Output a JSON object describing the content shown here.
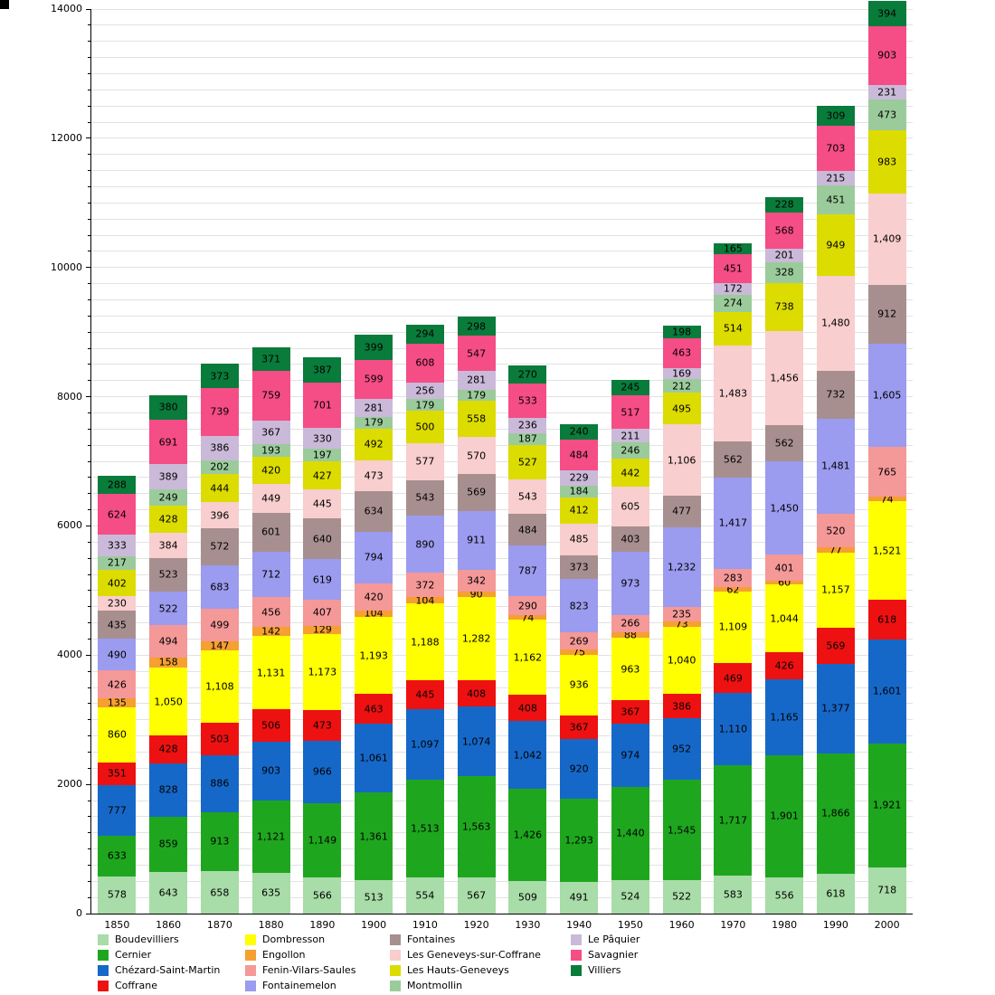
{
  "chart_data": {
    "type": "bar",
    "stacked": true,
    "title": "",
    "xlabel": "",
    "ylabel": "",
    "categories": [
      "1850",
      "1860",
      "1870",
      "1880",
      "1890",
      "1900",
      "1910",
      "1920",
      "1930",
      "1940",
      "1950",
      "1960",
      "1970",
      "1980",
      "1990",
      "2000"
    ],
    "ylim": [
      0,
      14000
    ],
    "y_major_step": 2000,
    "y_minor_step": 250,
    "grid": true,
    "legend_position": "bottom",
    "legend_columns": 4,
    "legend_rows_per_column": 4,
    "series": [
      {
        "name": "Boudevilliers",
        "color": "#a8dca8",
        "values": [
          578,
          643,
          658,
          635,
          566,
          513,
          554,
          567,
          509,
          491,
          524,
          522,
          583,
          556,
          618,
          718
        ]
      },
      {
        "name": "Cernier",
        "color": "#1ea71e",
        "values": [
          633,
          859,
          913,
          1121,
          1149,
          1361,
          1513,
          1563,
          1426,
          1293,
          1440,
          1545,
          1717,
          1901,
          1866,
          1921
        ]
      },
      {
        "name": "Chézard-Saint-Martin",
        "color": "#1668c8",
        "values": [
          777,
          828,
          886,
          903,
          966,
          1061,
          1097,
          1074,
          1042,
          920,
          974,
          952,
          1110,
          1165,
          1377,
          1601
        ]
      },
      {
        "name": "Coffrane",
        "color": "#ee1111",
        "values": [
          351,
          428,
          503,
          506,
          473,
          463,
          445,
          408,
          408,
          367,
          367,
          386,
          469,
          426,
          569,
          618
        ]
      },
      {
        "name": "Dombresson",
        "color": "#ffff00",
        "values": [
          860,
          1050,
          1108,
          1131,
          1173,
          1193,
          1188,
          1282,
          1162,
          936,
          963,
          1040,
          1109,
          1044,
          1157,
          1521
        ]
      },
      {
        "name": "Engollon",
        "color": "#f5a030",
        "values": [
          135,
          158,
          147,
          142,
          129,
          104,
          104,
          90,
          74,
          75,
          88,
          73,
          62,
          60,
          77,
          74
        ]
      },
      {
        "name": "Fenin-Vilars-Saules",
        "color": "#f59898",
        "values": [
          426,
          494,
          499,
          456,
          407,
          420,
          372,
          342,
          290,
          269,
          266,
          235,
          283,
          401,
          520,
          765
        ]
      },
      {
        "name": "Fontainemelon",
        "color": "#9b9bef",
        "values": [
          490,
          522,
          683,
          712,
          619,
          794,
          890,
          911,
          787,
          823,
          973,
          1232,
          1417,
          1450,
          1481,
          1605
        ]
      },
      {
        "name": "Fontaines",
        "color": "#a88f8f",
        "values": [
          435,
          523,
          572,
          601,
          640,
          634,
          543,
          569,
          484,
          373,
          403,
          477,
          562,
          562,
          732,
          912
        ]
      },
      {
        "name": "Les Geneveys-sur-Coffrane",
        "color": "#f8cece",
        "values": [
          230,
          384,
          396,
          449,
          445,
          473,
          577,
          570,
          543,
          485,
          605,
          1106,
          1483,
          1456,
          1480,
          1409
        ]
      },
      {
        "name": "Les Hauts-Geneveys",
        "color": "#dcdc00",
        "values": [
          402,
          428,
          444,
          420,
          427,
          492,
          500,
          558,
          527,
          412,
          442,
          495,
          514,
          738,
          949,
          983
        ]
      },
      {
        "name": "Montmollin",
        "color": "#9bcb9b",
        "values": [
          217,
          249,
          202,
          193,
          197,
          179,
          179,
          179,
          187,
          184,
          246,
          212,
          274,
          328,
          451,
          473
        ]
      },
      {
        "name": "Le Pâquier",
        "color": "#cbb9d9",
        "values": [
          333,
          389,
          386,
          367,
          330,
          281,
          256,
          281,
          236,
          229,
          211,
          169,
          172,
          201,
          215,
          231
        ]
      },
      {
        "name": "Savagnier",
        "color": "#f54d86",
        "values": [
          624,
          691,
          739,
          759,
          701,
          599,
          608,
          547,
          533,
          484,
          517,
          463,
          451,
          568,
          703,
          903
        ]
      },
      {
        "name": "Villiers",
        "color": "#097b3b",
        "values": [
          288,
          380,
          373,
          371,
          387,
          399,
          294,
          298,
          270,
          240,
          245,
          198,
          165,
          228,
          309,
          394
        ]
      }
    ]
  }
}
